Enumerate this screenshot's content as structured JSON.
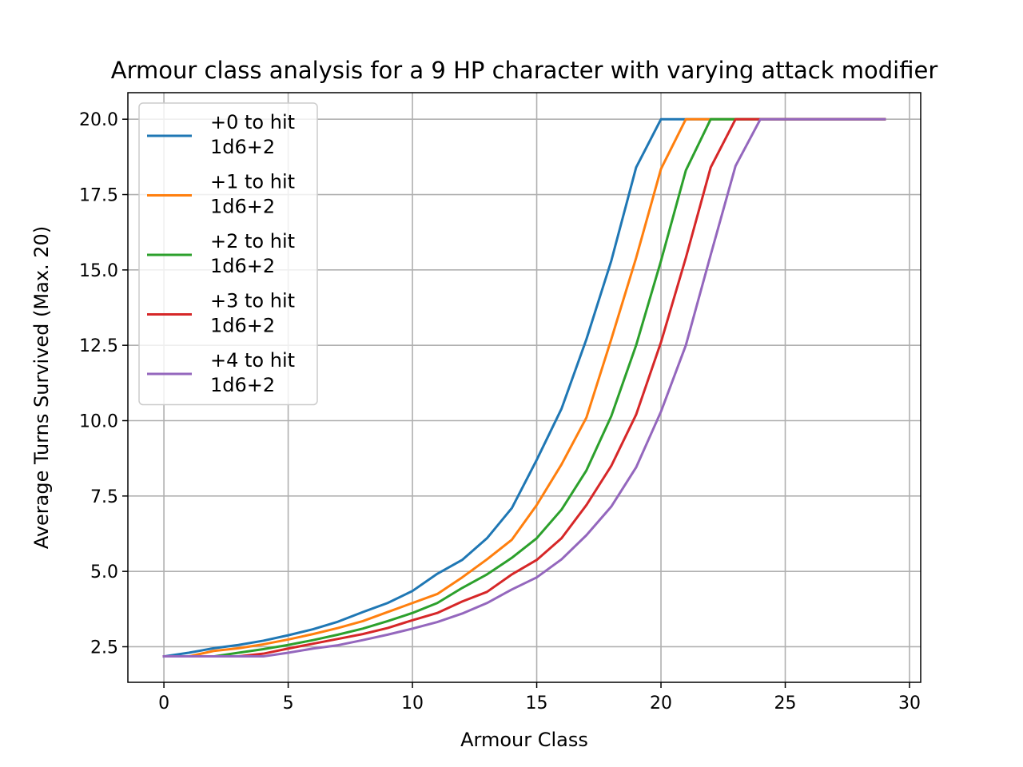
{
  "chart_data": {
    "type": "line",
    "title": "Armour class analysis for a 9 HP character with varying attack modifier",
    "xlabel": "Armour Class",
    "ylabel": "Average Turns Survived (Max. 20)",
    "xlim": [
      -1.45,
      30.45
    ],
    "ylim": [
      1.32,
      20.88
    ],
    "xticks": [
      {
        "value": 0,
        "label": "0"
      },
      {
        "value": 5,
        "label": "5"
      },
      {
        "value": 10,
        "label": "10"
      },
      {
        "value": 15,
        "label": "15"
      },
      {
        "value": 20,
        "label": "20"
      },
      {
        "value": 25,
        "label": "25"
      },
      {
        "value": 30,
        "label": "30"
      }
    ],
    "yticks": [
      {
        "value": 2.5,
        "label": "2.5"
      },
      {
        "value": 5.0,
        "label": "5.0"
      },
      {
        "value": 7.5,
        "label": "7.5"
      },
      {
        "value": 10.0,
        "label": "10.0"
      },
      {
        "value": 12.5,
        "label": "12.5"
      },
      {
        "value": 15.0,
        "label": "15.0"
      },
      {
        "value": 17.5,
        "label": "17.5"
      },
      {
        "value": 20.0,
        "label": "20.0"
      }
    ],
    "grid": true,
    "legend_position": "upper-left",
    "x": [
      0,
      1,
      2,
      3,
      4,
      5,
      6,
      7,
      8,
      9,
      10,
      11,
      12,
      13,
      14,
      15,
      16,
      17,
      18,
      19,
      20,
      21,
      22,
      23,
      24,
      25,
      26,
      27,
      28,
      29
    ],
    "series": [
      {
        "name": "+0 to hit\n1d6+2",
        "color": "#1f77b4",
        "values": [
          2.18,
          2.3,
          2.45,
          2.56,
          2.7,
          2.88,
          3.08,
          3.33,
          3.65,
          3.95,
          4.35,
          4.92,
          5.38,
          6.1,
          7.1,
          8.7,
          10.4,
          12.7,
          15.3,
          18.4,
          20,
          20,
          20,
          20,
          20,
          20,
          20,
          20,
          20,
          20
        ]
      },
      {
        "name": "+1 to hit\n1d6+2",
        "color": "#ff7f0e",
        "values": [
          2.18,
          2.18,
          2.36,
          2.45,
          2.58,
          2.74,
          2.92,
          3.12,
          3.35,
          3.65,
          3.95,
          4.25,
          4.8,
          5.4,
          6.05,
          7.2,
          8.55,
          10.1,
          12.7,
          15.4,
          18.35,
          20,
          20,
          20,
          20,
          20,
          20,
          20,
          20,
          20
        ]
      },
      {
        "name": "+2 to hit\n1d6+2",
        "color": "#2ca02c",
        "values": [
          2.18,
          2.18,
          2.18,
          2.3,
          2.42,
          2.56,
          2.72,
          2.9,
          3.1,
          3.35,
          3.62,
          3.95,
          4.45,
          4.9,
          5.45,
          6.1,
          7.05,
          8.35,
          10.15,
          12.5,
          15.3,
          18.3,
          20,
          20,
          20,
          20,
          20,
          20,
          20,
          20
        ]
      },
      {
        "name": "+3 to hit\n1d6+2",
        "color": "#d62728",
        "values": [
          2.18,
          2.18,
          2.18,
          2.18,
          2.27,
          2.44,
          2.6,
          2.76,
          2.92,
          3.12,
          3.38,
          3.62,
          4.0,
          4.32,
          4.9,
          5.38,
          6.1,
          7.2,
          8.5,
          10.2,
          12.6,
          15.4,
          18.4,
          20,
          20,
          20,
          20,
          20,
          20,
          20
        ]
      },
      {
        "name": "+4 to hit\n1d6+2",
        "color": "#9467bd",
        "values": [
          2.18,
          2.18,
          2.18,
          2.18,
          2.18,
          2.3,
          2.44,
          2.55,
          2.72,
          2.9,
          3.1,
          3.32,
          3.6,
          3.95,
          4.4,
          4.8,
          5.4,
          6.2,
          7.15,
          8.45,
          10.3,
          12.5,
          15.5,
          18.45,
          20,
          20,
          20,
          20,
          20,
          20
        ]
      }
    ]
  }
}
